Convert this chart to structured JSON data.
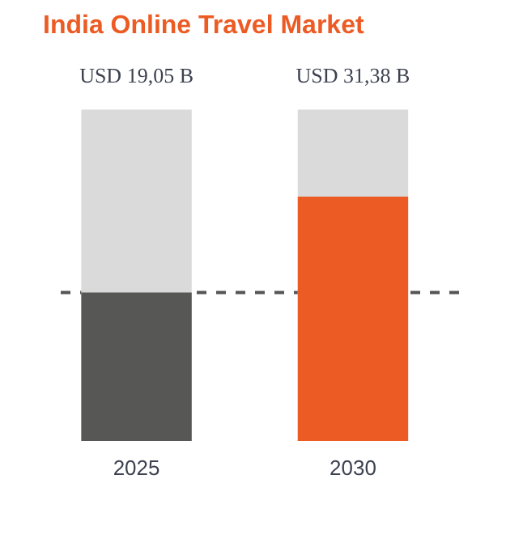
{
  "chart_data": {
    "type": "bar",
    "title": "India Online Travel Market",
    "categories": [
      "2025",
      "2030"
    ],
    "values": [
      19.05,
      31.38
    ],
    "colors": [
      "#575756",
      "#ec5b24"
    ],
    "value_labels": [
      "USD 19,05 B",
      "USD 31,38 B"
    ],
    "ref_lines": [
      {
        "axis": "y",
        "value": 19.05,
        "color": "#555555",
        "line_style": "dashed"
      }
    ],
    "grid": false
  }
}
